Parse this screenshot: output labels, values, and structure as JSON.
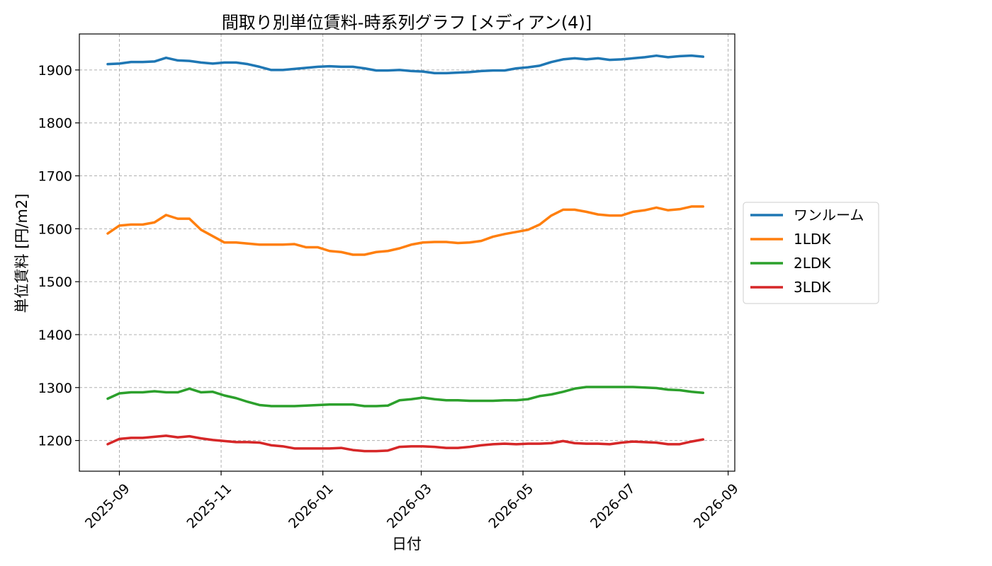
{
  "chart_data": {
    "type": "line",
    "title": "間取り別単位賃料-時系列グラフ [メディアン(4)]",
    "xlabel": "日付",
    "ylabel": "単位賃料 [円/m2]",
    "grid": true,
    "legend_position": "right-center, outside plot",
    "x_is_date": true,
    "xlim": [
      "2025-08-08",
      "2026-09-05"
    ],
    "ylim": [
      1142,
      1968
    ],
    "x_ticks": [
      {
        "label": "2025-09",
        "date": "2025-09-01"
      },
      {
        "label": "2025-11",
        "date": "2025-11-01"
      },
      {
        "label": "2026-01",
        "date": "2026-01-01"
      },
      {
        "label": "2026-03",
        "date": "2026-03-01"
      },
      {
        "label": "2026-05",
        "date": "2026-05-01"
      },
      {
        "label": "2026-07",
        "date": "2026-07-01"
      },
      {
        "label": "2026-09",
        "date": "2026-09-01"
      }
    ],
    "y_ticks": [
      1200,
      1300,
      1400,
      1500,
      1600,
      1700,
      1800,
      1900
    ],
    "x": [
      "2025-08-25",
      "2025-09-01",
      "2025-09-08",
      "2025-09-15",
      "2025-09-22",
      "2025-09-29",
      "2025-10-06",
      "2025-10-13",
      "2025-10-20",
      "2025-10-27",
      "2025-11-03",
      "2025-11-10",
      "2025-11-17",
      "2025-11-24",
      "2025-12-01",
      "2025-12-08",
      "2025-12-15",
      "2025-12-22",
      "2025-12-29",
      "2026-01-05",
      "2026-01-12",
      "2026-01-19",
      "2026-01-26",
      "2026-02-02",
      "2026-02-09",
      "2026-02-16",
      "2026-02-23",
      "2026-03-02",
      "2026-03-09",
      "2026-03-16",
      "2026-03-23",
      "2026-03-30",
      "2026-04-06",
      "2026-04-13",
      "2026-04-20",
      "2026-04-27",
      "2026-05-04",
      "2026-05-11",
      "2026-05-18",
      "2026-05-25",
      "2026-06-01",
      "2026-06-08",
      "2026-06-15",
      "2026-06-22",
      "2026-06-29",
      "2026-07-06",
      "2026-07-13",
      "2026-07-20",
      "2026-07-27",
      "2026-08-03",
      "2026-08-10",
      "2026-08-17"
    ],
    "series": [
      {
        "name": "ワンルーム",
        "color": "#1f77b4",
        "values": [
          1911,
          1912,
          1915,
          1915,
          1916,
          1923,
          1918,
          1917,
          1914,
          1912,
          1914,
          1914,
          1911,
          1906,
          1900,
          1900,
          1902,
          1904,
          1906,
          1907,
          1906,
          1906,
          1903,
          1899,
          1899,
          1900,
          1898,
          1897,
          1894,
          1894,
          1895,
          1896,
          1898,
          1899,
          1899,
          1903,
          1905,
          1908,
          1915,
          1920,
          1922,
          1920,
          1922,
          1919,
          1920,
          1922,
          1924,
          1927,
          1924,
          1926,
          1927,
          1925
        ]
      },
      {
        "name": "1LDK",
        "color": "#ff7f0e",
        "values": [
          1591,
          1606,
          1608,
          1608,
          1612,
          1626,
          1619,
          1619,
          1598,
          1586,
          1574,
          1574,
          1572,
          1570,
          1570,
          1570,
          1571,
          1565,
          1565,
          1558,
          1556,
          1551,
          1551,
          1556,
          1558,
          1563,
          1570,
          1574,
          1575,
          1575,
          1573,
          1574,
          1577,
          1585,
          1590,
          1594,
          1598,
          1608,
          1625,
          1636,
          1636,
          1632,
          1627,
          1625,
          1625,
          1632,
          1635,
          1640,
          1635,
          1637,
          1642,
          1642
        ]
      },
      {
        "name": "2LDK",
        "color": "#2ca02c",
        "values": [
          1279,
          1289,
          1291,
          1291,
          1293,
          1291,
          1291,
          1298,
          1291,
          1292,
          1285,
          1280,
          1273,
          1267,
          1265,
          1265,
          1265,
          1266,
          1267,
          1268,
          1268,
          1268,
          1265,
          1265,
          1266,
          1276,
          1278,
          1281,
          1278,
          1276,
          1276,
          1275,
          1275,
          1275,
          1276,
          1276,
          1278,
          1284,
          1287,
          1292,
          1298,
          1301,
          1301,
          1301,
          1301,
          1301,
          1300,
          1299,
          1296,
          1295,
          1292,
          1290
        ]
      },
      {
        "name": "3LDK",
        "color": "#d62728",
        "values": [
          1193,
          1203,
          1205,
          1205,
          1207,
          1209,
          1206,
          1208,
          1204,
          1201,
          1199,
          1197,
          1197,
          1196,
          1191,
          1189,
          1185,
          1185,
          1185,
          1185,
          1186,
          1182,
          1180,
          1180,
          1181,
          1188,
          1189,
          1189,
          1188,
          1186,
          1186,
          1188,
          1191,
          1193,
          1194,
          1193,
          1194,
          1194,
          1195,
          1199,
          1195,
          1194,
          1194,
          1193,
          1196,
          1198,
          1197,
          1196,
          1193,
          1193,
          1198,
          1202
        ]
      }
    ]
  }
}
